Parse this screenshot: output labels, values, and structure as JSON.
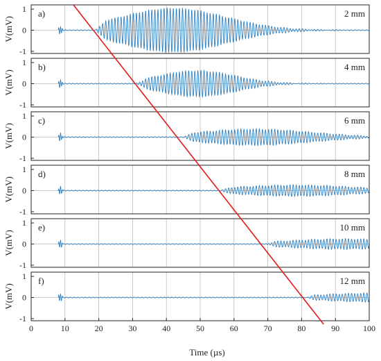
{
  "chart_data": {
    "type": "line",
    "xlabel": "Time (µs)",
    "ylabel": "V(mV)",
    "xlim": [
      0,
      100
    ],
    "ylim": [
      -1.1,
      1.2
    ],
    "x_ticks": [
      "0",
      "10",
      "20",
      "30",
      "40",
      "50",
      "60",
      "70",
      "80",
      "90",
      "100"
    ],
    "y_ticks": [
      "1",
      "0",
      "-1"
    ],
    "grid": true,
    "series_color": "#2f7fbf",
    "line_color": "#e31a1c",
    "arrival_line": {
      "x": [
        12.5,
        86.5
      ],
      "y_panel": [
        0,
        5
      ]
    },
    "panels": [
      {
        "label": "a)",
        "distance": "2 mm",
        "onset": 19,
        "peak_t": 42,
        "amp": 1.05,
        "width": 22,
        "tail": 0.15
      },
      {
        "label": "b)",
        "distance": "4 mm",
        "onset": 31,
        "peak_t": 49,
        "amp": 0.62,
        "width": 16,
        "tail": 0.1
      },
      {
        "label": "c)",
        "distance": "6 mm",
        "onset": 45,
        "peak_t": 66,
        "amp": 0.38,
        "width": 24,
        "tail": 0.12
      },
      {
        "label": "d)",
        "distance": "8 mm",
        "onset": 56,
        "peak_t": 78,
        "amp": 0.26,
        "width": 26,
        "tail": 0.13
      },
      {
        "label": "e)",
        "distance": "10 mm",
        "onset": 69,
        "peak_t": 92,
        "amp": 0.24,
        "width": 24,
        "tail": 0.14
      },
      {
        "label": "f)",
        "distance": "12 mm",
        "onset": 81,
        "peak_t": 100,
        "amp": 0.2,
        "width": 22,
        "tail": 0.14
      }
    ]
  }
}
